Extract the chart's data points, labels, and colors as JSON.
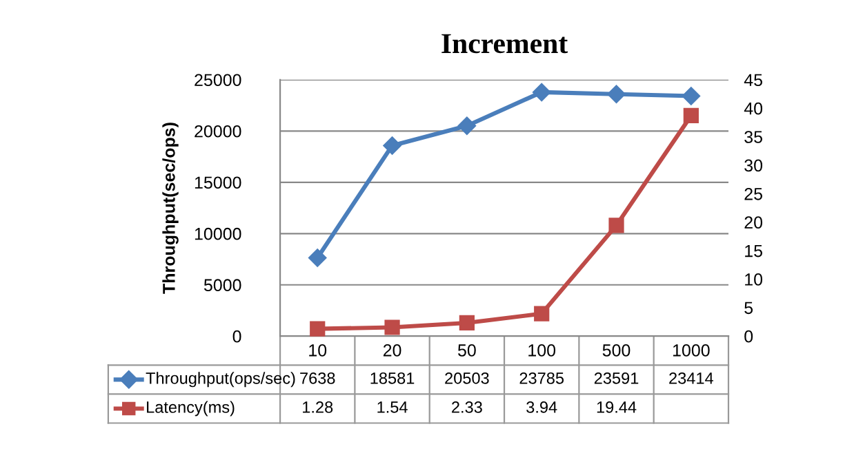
{
  "chart_data": {
    "type": "line",
    "title": "Increment",
    "ylabel": "Throughput(sec/ops)",
    "categories": [
      "10",
      "20",
      "50",
      "100",
      "500",
      "1000"
    ],
    "series": [
      {
        "name": "Throughput(ops/sec)",
        "color": "#4a7ebb",
        "marker": "diamond",
        "values": [
          7638,
          18581,
          20503,
          23785,
          23591,
          23414
        ],
        "value_labels": [
          "7638",
          "18581",
          "20503",
          "23785",
          "23591",
          "23414"
        ]
      },
      {
        "name": "Latency(ms)",
        "color": "#be4b48",
        "marker": "square",
        "axis": "y2",
        "values": [
          1.28,
          1.54,
          2.33,
          3.94,
          19.44,
          38.7
        ],
        "value_labels": [
          "1.28",
          "1.54",
          "2.33",
          "3.94",
          "19.44",
          null
        ]
      }
    ],
    "ylim": [
      0,
      25000
    ],
    "yticks": [
      0,
      5000,
      10000,
      15000,
      20000,
      25000
    ],
    "y2lim": [
      0,
      45
    ],
    "y2ticks": [
      0,
      5,
      10,
      15,
      20,
      25,
      30,
      35,
      40,
      45
    ],
    "grid": "y",
    "legend": "bottom"
  }
}
